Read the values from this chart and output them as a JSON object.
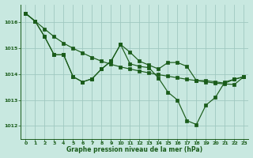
{
  "title": "Graphe pression niveau de la mer (hPa)",
  "background_color": "#c8e8e0",
  "line_color": "#1a5c1a",
  "grid_color": "#a0c8c0",
  "ylim": [
    1011.5,
    1016.7
  ],
  "xlim": [
    -0.5,
    23.5
  ],
  "yticks": [
    1012,
    1013,
    1014,
    1015,
    1016
  ],
  "xticks": [
    0,
    1,
    2,
    3,
    4,
    5,
    6,
    7,
    8,
    9,
    10,
    11,
    12,
    13,
    14,
    15,
    16,
    17,
    18,
    19,
    20,
    21,
    22,
    23
  ],
  "series_straight": [
    1016.35,
    1016.05,
    1015.75,
    1015.45,
    1015.2,
    1015.0,
    1014.82,
    1014.65,
    1014.5,
    1014.38,
    1014.28,
    1014.2,
    1014.12,
    1014.05,
    1013.98,
    1013.92,
    1013.86,
    1013.8,
    1013.75,
    1013.7,
    1013.65,
    1013.62,
    1013.6,
    1013.9
  ],
  "series_upper": [
    1016.35,
    1016.05,
    1015.45,
    1014.75,
    1014.75,
    1013.9,
    1013.7,
    1013.82,
    1014.2,
    1014.5,
    1015.15,
    1014.85,
    1014.5,
    1014.35,
    1014.2,
    1014.45,
    1014.45,
    1014.3,
    1013.75,
    1013.75,
    1013.7,
    1013.65,
    1013.8,
    1013.9
  ],
  "series_lower": [
    1016.35,
    1016.05,
    1015.45,
    1014.75,
    1014.75,
    1013.9,
    1013.7,
    1013.82,
    1014.2,
    1014.5,
    1015.15,
    1014.4,
    1014.3,
    1014.25,
    1013.85,
    1013.3,
    1013.0,
    1012.2,
    1012.05,
    1012.8,
    1013.1,
    1013.7,
    1013.8,
    1013.9
  ]
}
